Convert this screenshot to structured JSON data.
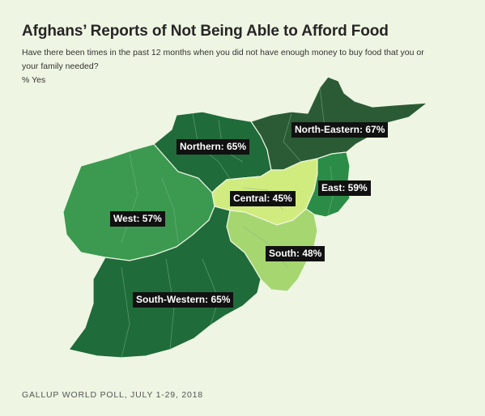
{
  "title": "Afghans’ Reports of Not Being Able to Afford Food",
  "subtitle": "Have there been times in the past 12 months when you did not have enough money to buy food that you or your family needed?",
  "unit_label": "% Yes",
  "source": "GALLUP WORLD POLL, JULY 1-29, 2018",
  "regions": [
    {
      "name": "North-Eastern",
      "value": 67,
      "label": "North-Eastern: 67%",
      "color": "#2a5b35"
    },
    {
      "name": "Northern",
      "value": 65,
      "label": "Northern: 65%",
      "color": "#1f6b3a"
    },
    {
      "name": "South-Western",
      "value": 65,
      "label": "South-Western: 65%",
      "color": "#1f6b3a"
    },
    {
      "name": "East",
      "value": 59,
      "label": "East: 59%",
      "color": "#2b8c47"
    },
    {
      "name": "West",
      "value": 57,
      "label": "West: 57%",
      "color": "#3b9a50"
    },
    {
      "name": "South",
      "value": 48,
      "label": "South: 48%",
      "color": "#a6d670"
    },
    {
      "name": "Central",
      "value": 45,
      "label": "Central: 45%",
      "color": "#d1ec7e"
    }
  ]
}
